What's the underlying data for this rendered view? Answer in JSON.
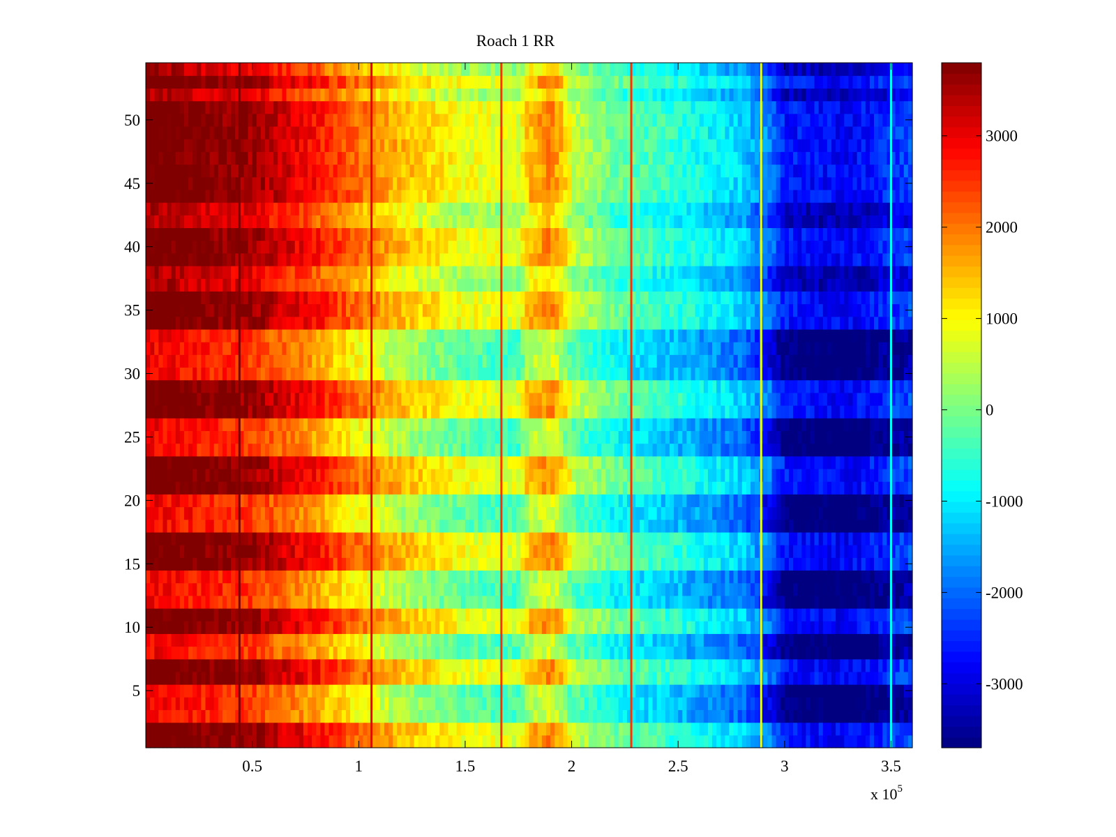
{
  "chart_data": {
    "type": "heatmap",
    "title": "Roach 1 RR",
    "xlabel": "",
    "ylabel": "",
    "x_exponent_label": "x 10",
    "x_exponent_power": "5",
    "xlim": [
      0,
      3.6
    ],
    "ylim": [
      0.5,
      54.5
    ],
    "x_ticks": [
      0.5,
      1,
      1.5,
      2,
      2.5,
      3,
      3.5
    ],
    "x_tick_labels": [
      "0.5",
      "1",
      "1.5",
      "2",
      "2.5",
      "3",
      "3.5"
    ],
    "y_ticks": [
      5,
      10,
      15,
      20,
      25,
      30,
      35,
      40,
      45,
      50
    ],
    "y_tick_labels": [
      "5",
      "10",
      "15",
      "20",
      "25",
      "30",
      "35",
      "40",
      "45",
      "50"
    ],
    "rows": 54,
    "colormap": "jet",
    "clim": [
      -3700,
      3800
    ],
    "colorbar_ticks": [
      3000,
      2000,
      1000,
      0,
      -1000,
      -2000,
      -3000
    ],
    "colorbar_tick_labels": [
      "3000",
      "2000",
      "1000",
      "0",
      "-1000",
      "-2000",
      "-3000"
    ],
    "value_profile_x": [
      0,
      0.5,
      0.8,
      1.0,
      1.2,
      1.5,
      1.75,
      1.8,
      1.9,
      1.95,
      2.0,
      2.2,
      2.5,
      2.8,
      2.92,
      3.0,
      3.3,
      3.6
    ],
    "value_profile_v": [
      3500,
      3000,
      2200,
      1500,
      900,
      300,
      150,
      900,
      1300,
      900,
      200,
      -500,
      -1000,
      -1600,
      -2300,
      -3200,
      -3400,
      -2800
    ],
    "high_rows": [
      1,
      2,
      6,
      7,
      10,
      11,
      15,
      16,
      17,
      21,
      22,
      23,
      27,
      28,
      29,
      34,
      35,
      36,
      39,
      40,
      41,
      44,
      45,
      46,
      47,
      48,
      49,
      50,
      51,
      53
    ],
    "low_rows": [
      3,
      4,
      5,
      8,
      9,
      12,
      13,
      14,
      18,
      19,
      20,
      24,
      25,
      26,
      30,
      31,
      32,
      33
    ],
    "vertical_lines": [
      {
        "x": 0.44,
        "value": 3800
      },
      {
        "x": 1.06,
        "value": 3000
      },
      {
        "x": 1.67,
        "value": 2500
      },
      {
        "x": 2.28,
        "value": 2500
      },
      {
        "x": 2.89,
        "value": 800
      },
      {
        "x": 3.5,
        "value": -900
      }
    ]
  }
}
